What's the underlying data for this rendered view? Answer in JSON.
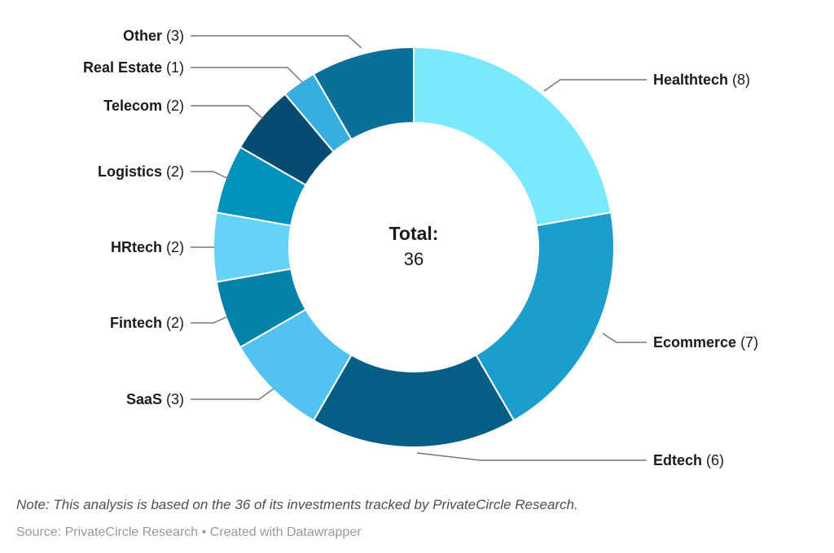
{
  "chart_data": {
    "type": "pie",
    "variant": "donut",
    "categories": [
      "Healthtech",
      "Ecommerce",
      "Edtech",
      "SaaS",
      "Fintech",
      "HRtech",
      "Logistics",
      "Telecom",
      "Real Estate",
      "Other"
    ],
    "values": [
      8,
      7,
      6,
      3,
      2,
      2,
      2,
      2,
      1,
      3
    ],
    "colors": [
      "#7ce8fc",
      "#1b9dce",
      "#045e86",
      "#52c2f0",
      "#0381a9",
      "#64d2f9",
      "#0092bd",
      "#084b70",
      "#38ade0",
      "#0a7099"
    ],
    "total": 36,
    "center_label": "Total:",
    "center_value": "36",
    "label_format": "{name} ({value})",
    "start_angle_deg": 0,
    "direction": "clockwise",
    "legend_position": "callout-labels",
    "title": ""
  },
  "footer": {
    "note": "Note: This analysis is based on the 36 of its investments tracked by PrivateCircle Research.",
    "source": "Source: PrivateCircle Research • Created with Datawrapper"
  },
  "style": {
    "background": "#ffffff",
    "label_color": "#1a1a1a",
    "leader_line_color": "#767676",
    "slice_gap_color": "#ffffff",
    "note_color": "#4e4e4e",
    "source_color": "#999999"
  }
}
